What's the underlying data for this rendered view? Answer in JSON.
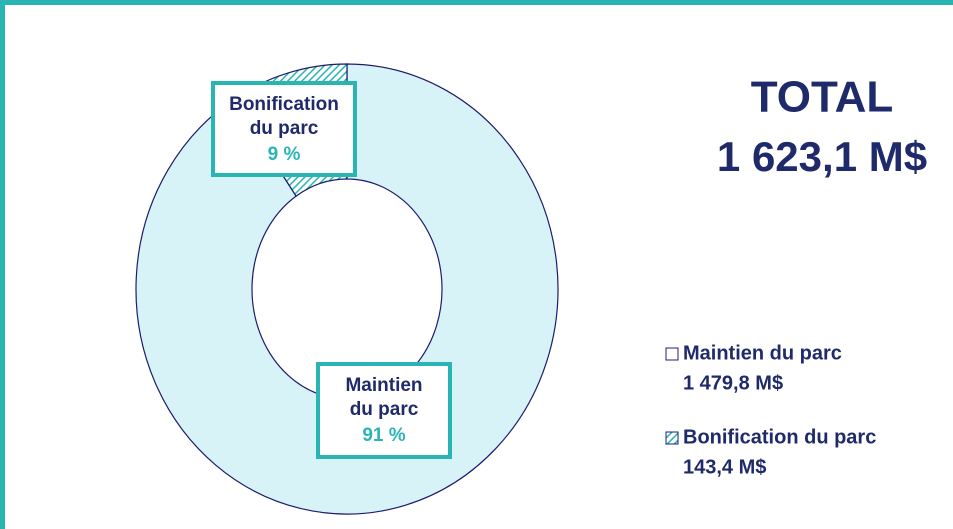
{
  "chart_data": {
    "type": "donut",
    "title": "TOTAL",
    "total": 1623.1,
    "total_label": "1 623,1 M$",
    "categories": [
      "Maintien du parc",
      "Bonification du parc"
    ],
    "values": [
      91,
      9
    ],
    "value_labels": [
      "91 %",
      "9 %"
    ],
    "amounts": [
      1479.8,
      143.4
    ],
    "amount_labels": [
      "1 479,8 M$",
      "143,4 M$"
    ],
    "colors": [
      "#d8f3f7",
      "#2ab5b5"
    ],
    "legend": "right"
  }
}
